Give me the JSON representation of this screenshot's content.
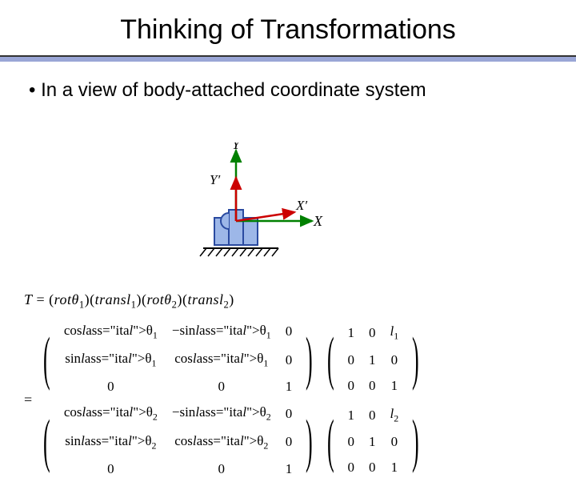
{
  "title": "Thinking of Transformations",
  "bullet": "In a view of body-attached coordinate system",
  "diagram": {
    "axis_labels": {
      "Y": "Y",
      "X": "X",
      "Yp": "Y′",
      "Xp": "X′"
    },
    "colors": {
      "x_axis": "#008000",
      "y_axis": "#008000",
      "xp_axis": "#cc0000",
      "yp_axis": "#cc0000",
      "base_fill": "#9db7e8",
      "base_stroke": "#2a4aa0",
      "ground_stroke": "#000000",
      "label": "#000000"
    }
  },
  "equation": {
    "lhs": "T",
    "factors_text": "= (rotθ₁)(transl₁)(rotθ₂)(transl₂)",
    "matrices": [
      {
        "rows": [
          [
            "cosθ₁",
            "−sinθ₁",
            "0"
          ],
          [
            "sinθ₁",
            "cosθ₁",
            "0"
          ],
          [
            "0",
            "0",
            "1"
          ]
        ]
      },
      {
        "rows": [
          [
            "1",
            "0",
            "l₁"
          ],
          [
            "0",
            "1",
            "0"
          ],
          [
            "0",
            "0",
            "1"
          ]
        ]
      },
      {
        "rows": [
          [
            "cosθ₂",
            "−sinθ₂",
            "0"
          ],
          [
            "sinθ₂",
            "cosθ₂",
            "0"
          ],
          [
            "0",
            "0",
            "1"
          ]
        ]
      },
      {
        "rows": [
          [
            "1",
            "0",
            "l₂"
          ],
          [
            "0",
            "1",
            "0"
          ],
          [
            "0",
            "0",
            "1"
          ]
        ]
      }
    ]
  }
}
